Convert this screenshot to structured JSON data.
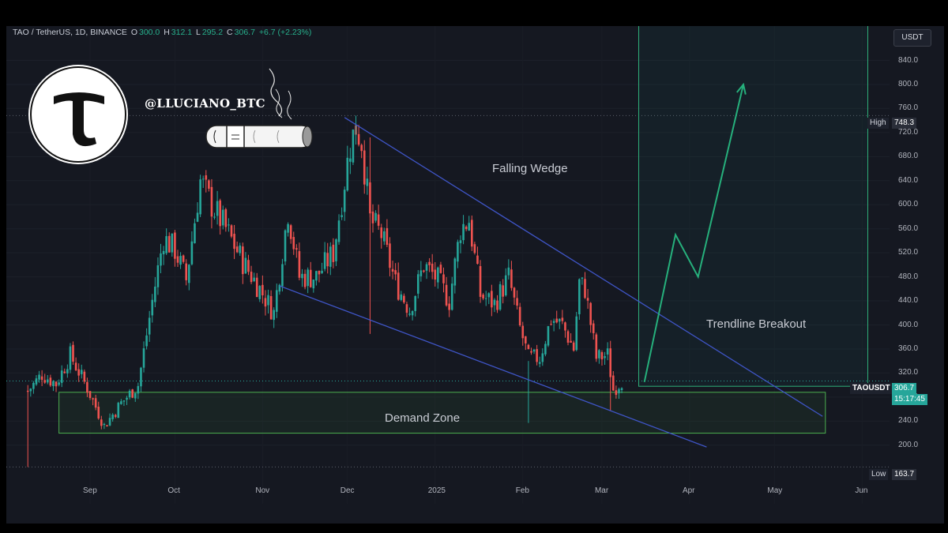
{
  "header": {
    "symbol": "TAO / TetherUS, 1D, BINANCE",
    "open_label": "O",
    "open": "300.0",
    "high_label": "H",
    "high": "312.1",
    "low_label": "L",
    "low": "295.2",
    "close_label": "C",
    "close": "306.7",
    "change": "+6.7 (+2.23%)"
  },
  "currency_button": "USDT",
  "watermark": {
    "handle": "@LLUCIANO_BTC",
    "logo_icon": "t-logo-icon",
    "cigar_icon": "cigar-icon"
  },
  "colors": {
    "background": "#151821",
    "up_candle": "#26a69a",
    "down_candle": "#ef5350",
    "trendline": "#3f55c7",
    "demand_zone": "#4caf50",
    "breakout_box": "#2fb07a",
    "breakout_arrow": "#26b07c"
  },
  "annotations": {
    "falling_wedge": "Falling Wedge",
    "trendline_breakout": "Trendline Breakout",
    "demand_zone": "Demand Zone"
  },
  "price_tags": {
    "high_label": "High",
    "high_value": "748.3",
    "last_symbol": "TAOUSDT",
    "last_value": "306.7",
    "countdown": "15:17:45",
    "low_label": "Low",
    "low_value": "163.7"
  },
  "chart_data": {
    "type": "candlestick",
    "title": "TAO / TetherUS, 1D, BINANCE",
    "x_ticks": [
      "Sep",
      "Oct",
      "Nov",
      "Dec",
      "2025",
      "Feb",
      "Mar",
      "Apr",
      "May",
      "Jun"
    ],
    "y_ticks": [
      "840.0",
      "800.0",
      "760.0",
      "720.0",
      "680.0",
      "640.0",
      "600.0",
      "560.0",
      "520.0",
      "480.0",
      "440.0",
      "400.0",
      "360.0",
      "320.0",
      "280.0",
      "240.0",
      "200.0"
    ],
    "ylim": [
      160,
      900
    ],
    "high": 748.3,
    "low": 163.7,
    "last": 306.7,
    "close_path": [
      [
        "2024-08-10",
        290
      ],
      [
        "2024-08-15",
        318
      ],
      [
        "2024-08-20",
        302
      ],
      [
        "2024-08-25",
        350
      ],
      [
        "2024-08-31",
        295
      ],
      [
        "2024-09-06",
        232
      ],
      [
        "2024-09-12",
        270
      ],
      [
        "2024-09-18",
        300
      ],
      [
        "2024-09-23",
        440
      ],
      [
        "2024-09-27",
        545
      ],
      [
        "2024-10-01",
        525
      ],
      [
        "2024-10-05",
        475
      ],
      [
        "2024-10-10",
        640
      ],
      [
        "2024-10-14",
        600
      ],
      [
        "2024-10-19",
        560
      ],
      [
        "2024-10-25",
        505
      ],
      [
        "2024-10-31",
        460
      ],
      [
        "2024-11-05",
        420
      ],
      [
        "2024-11-10",
        590
      ],
      [
        "2024-11-14",
        480
      ],
      [
        "2024-11-20",
        480
      ],
      [
        "2024-11-26",
        520
      ],
      [
        "2024-11-30",
        640
      ],
      [
        "2024-12-02",
        700
      ],
      [
        "2024-12-04",
        730
      ],
      [
        "2024-12-06",
        705
      ],
      [
        "2024-12-09",
        575
      ],
      [
        "2024-12-13",
        550
      ],
      [
        "2024-12-18",
        470
      ],
      [
        "2024-12-23",
        425
      ],
      [
        "2024-12-28",
        500
      ],
      [
        "2025-01-02",
        475
      ],
      [
        "2025-01-06",
        440
      ],
      [
        "2025-01-10",
        560
      ],
      [
        "2025-01-13",
        575
      ],
      [
        "2025-01-17",
        450
      ],
      [
        "2025-01-22",
        435
      ],
      [
        "2025-01-27",
        480
      ],
      [
        "2025-01-31",
        395
      ],
      [
        "2025-02-03",
        345
      ],
      [
        "2025-02-07",
        345
      ],
      [
        "2025-02-11",
        410
      ],
      [
        "2025-02-15",
        400
      ],
      [
        "2025-02-19",
        360
      ],
      [
        "2025-02-21",
        470
      ],
      [
        "2025-02-23",
        460
      ],
      [
        "2025-02-27",
        345
      ],
      [
        "2025-03-03",
        350
      ],
      [
        "2025-03-05",
        292
      ],
      [
        "2025-03-08",
        306.7
      ]
    ],
    "wedge_upper": [
      [
        "2024-11-30",
        745
      ],
      [
        "2025-05-18",
        248
      ]
    ],
    "wedge_lower": [
      [
        "2024-11-07",
        465
      ],
      [
        "2025-04-07",
        197
      ]
    ],
    "demand_zone": {
      "from": "2024-08-21",
      "to": "2025-05-19",
      "low": 220,
      "high": 288
    },
    "breakout_box": {
      "from": "2025-03-14",
      "to": "2025-06-03",
      "low": 298,
      "high": 905
    },
    "breakout_path": [
      [
        "2025-03-16",
        305
      ],
      [
        "2025-03-27",
        550
      ],
      [
        "2025-04-04",
        480
      ],
      [
        "2025-04-20",
        800
      ]
    ]
  }
}
